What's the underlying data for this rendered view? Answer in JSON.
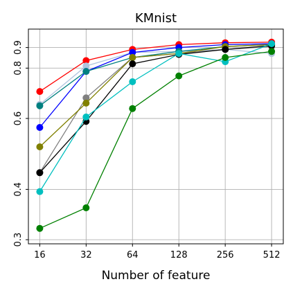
{
  "chart_data": {
    "type": "line",
    "title": "KMnist",
    "xlabel": "Number of feature",
    "ylabel": "",
    "x_scale": "log2",
    "y_scale": "log",
    "x": [
      16,
      32,
      64,
      128,
      256,
      512
    ],
    "x_tick_labels": [
      "16",
      "32",
      "64",
      "128",
      "256",
      "512"
    ],
    "xlim": [
      13.5,
      610
    ],
    "y_ticks": [
      0.3,
      0.4,
      0.6,
      0.8,
      0.9
    ],
    "y_tick_labels": [
      "0.3",
      "0.4",
      "0.6",
      "0.8",
      "0.9"
    ],
    "ylim": [
      0.293,
      1.0
    ],
    "grid": true,
    "series": [
      {
        "color": "#ff0000",
        "values": [
          0.7,
          0.835,
          0.89,
          0.915,
          0.925,
          0.928
        ]
      },
      {
        "color": "#b0c4de",
        "values": [
          0.65,
          0.81,
          0.875,
          0.88,
          0.89,
          0.87
        ]
      },
      {
        "color": "#0000ff",
        "values": [
          0.57,
          0.785,
          0.875,
          0.9,
          0.915,
          0.92
        ]
      },
      {
        "color": "#008080",
        "values": [
          0.645,
          0.785,
          0.85,
          0.88,
          0.905,
          0.915
        ]
      },
      {
        "color": "#808080",
        "values": [
          0.44,
          0.675,
          0.85,
          0.87,
          0.89,
          0.905
        ]
      },
      {
        "color": "#808000",
        "values": [
          0.51,
          0.655,
          0.85,
          0.87,
          0.905,
          0.915
        ]
      },
      {
        "color": "#000000",
        "values": [
          0.44,
          0.59,
          0.82,
          0.865,
          0.89,
          0.91
        ]
      },
      {
        "color": "#00bfbf",
        "values": [
          0.395,
          0.605,
          0.74,
          0.87,
          0.83,
          0.92
        ]
      },
      {
        "color": "#008000",
        "values": [
          0.32,
          0.36,
          0.635,
          0.765,
          0.85,
          0.88
        ]
      }
    ]
  }
}
